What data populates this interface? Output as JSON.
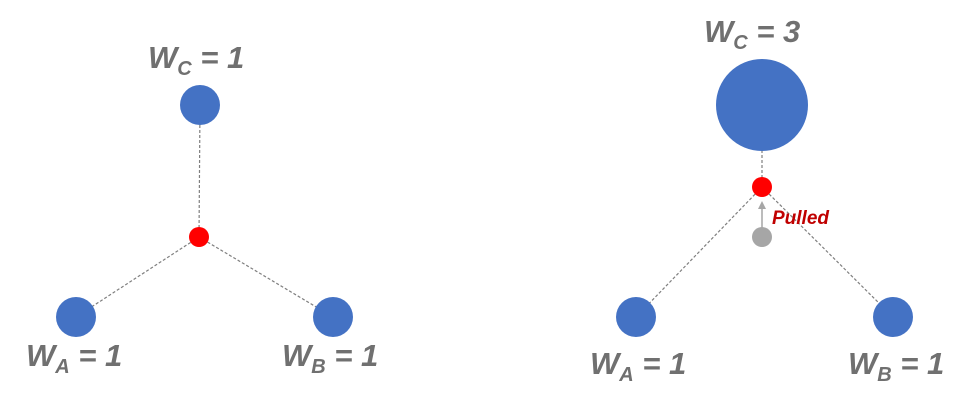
{
  "colors": {
    "node": "#4472c4",
    "centroid": "#ff0000",
    "old_centroid": "#a6a6a6",
    "edge": "#7f7f7f",
    "label": "#707070",
    "pulled_text": "#c00000"
  },
  "left_diagram": {
    "labels": {
      "c": {
        "main": "W",
        "sub": "C",
        "rest": " = 1"
      },
      "a": {
        "main": "W",
        "sub": "A",
        "rest": " = 1"
      },
      "b": {
        "main": "W",
        "sub": "B",
        "rest": " = 1"
      }
    }
  },
  "right_diagram": {
    "labels": {
      "c": {
        "main": "W",
        "sub": "C",
        "rest": " = 3"
      },
      "a": {
        "main": "W",
        "sub": "A",
        "rest": " = 1"
      },
      "b": {
        "main": "W",
        "sub": "B",
        "rest": " = 1"
      }
    },
    "pulled_label": "Pulled"
  }
}
